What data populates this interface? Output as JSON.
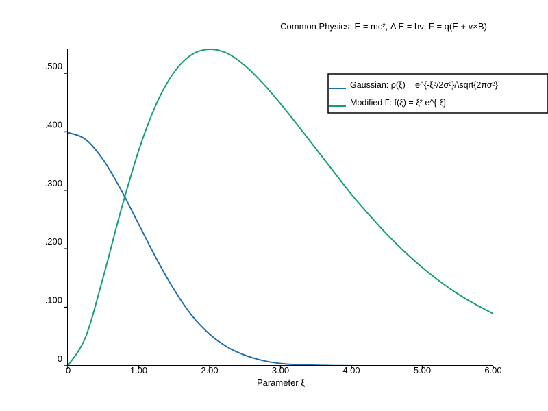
{
  "chart_data": {
    "type": "line",
    "title": "Common Physics: E = mc², Δ E = hν, F = q(E + v×B)",
    "xlabel": "Parameter ξ",
    "ylabel": "",
    "xlim": [
      0,
      6
    ],
    "ylim": [
      0,
      0.55
    ],
    "x_ticks": [
      0,
      1,
      2,
      3,
      4,
      5,
      6
    ],
    "x_tick_labels": [
      "0",
      "1.00",
      "2.00",
      "3.00",
      "4.00",
      "5.00",
      "6.00"
    ],
    "y_ticks": [
      0,
      0.1,
      0.2,
      0.3,
      0.4,
      0.5
    ],
    "y_tick_labels": [
      "0",
      ".100",
      ".200",
      ".300",
      ".400",
      ".500"
    ],
    "grid": false,
    "legend_position": "top-right",
    "x": [
      0,
      0.25,
      0.5,
      0.75,
      1,
      1.25,
      1.5,
      1.75,
      2,
      2.25,
      2.5,
      2.75,
      3,
      3.25,
      3.5,
      3.75,
      4,
      4.25,
      4.5,
      4.75,
      5,
      5.25,
      5.5,
      5.75,
      6
    ],
    "series": [
      {
        "name": "Gaussian: ρ(ξ) = e^{-ξ²/2σ²}/\\sqrt{2πσ²}",
        "color": "#1f6fad",
        "values": [
          0.399,
          0.387,
          0.352,
          0.301,
          0.242,
          0.183,
          0.13,
          0.086,
          0.054,
          0.032,
          0.018,
          0.009,
          0.004,
          0.002,
          0.001,
          0.0004,
          0.0001,
          0.0,
          0.0,
          0.0,
          0.0,
          0.0,
          0.0,
          0.0,
          0.0
        ]
      },
      {
        "name": "Modified Γ: f(ξ) = ξ² e^{-ξ}",
        "color": "#14a06e",
        "values": [
          0.0,
          0.049,
          0.152,
          0.266,
          0.368,
          0.448,
          0.502,
          0.532,
          0.541,
          0.534,
          0.513,
          0.483,
          0.448,
          0.41,
          0.371,
          0.332,
          0.293,
          0.258,
          0.225,
          0.195,
          0.168,
          0.144,
          0.123,
          0.105,
          0.089
        ]
      }
    ]
  }
}
